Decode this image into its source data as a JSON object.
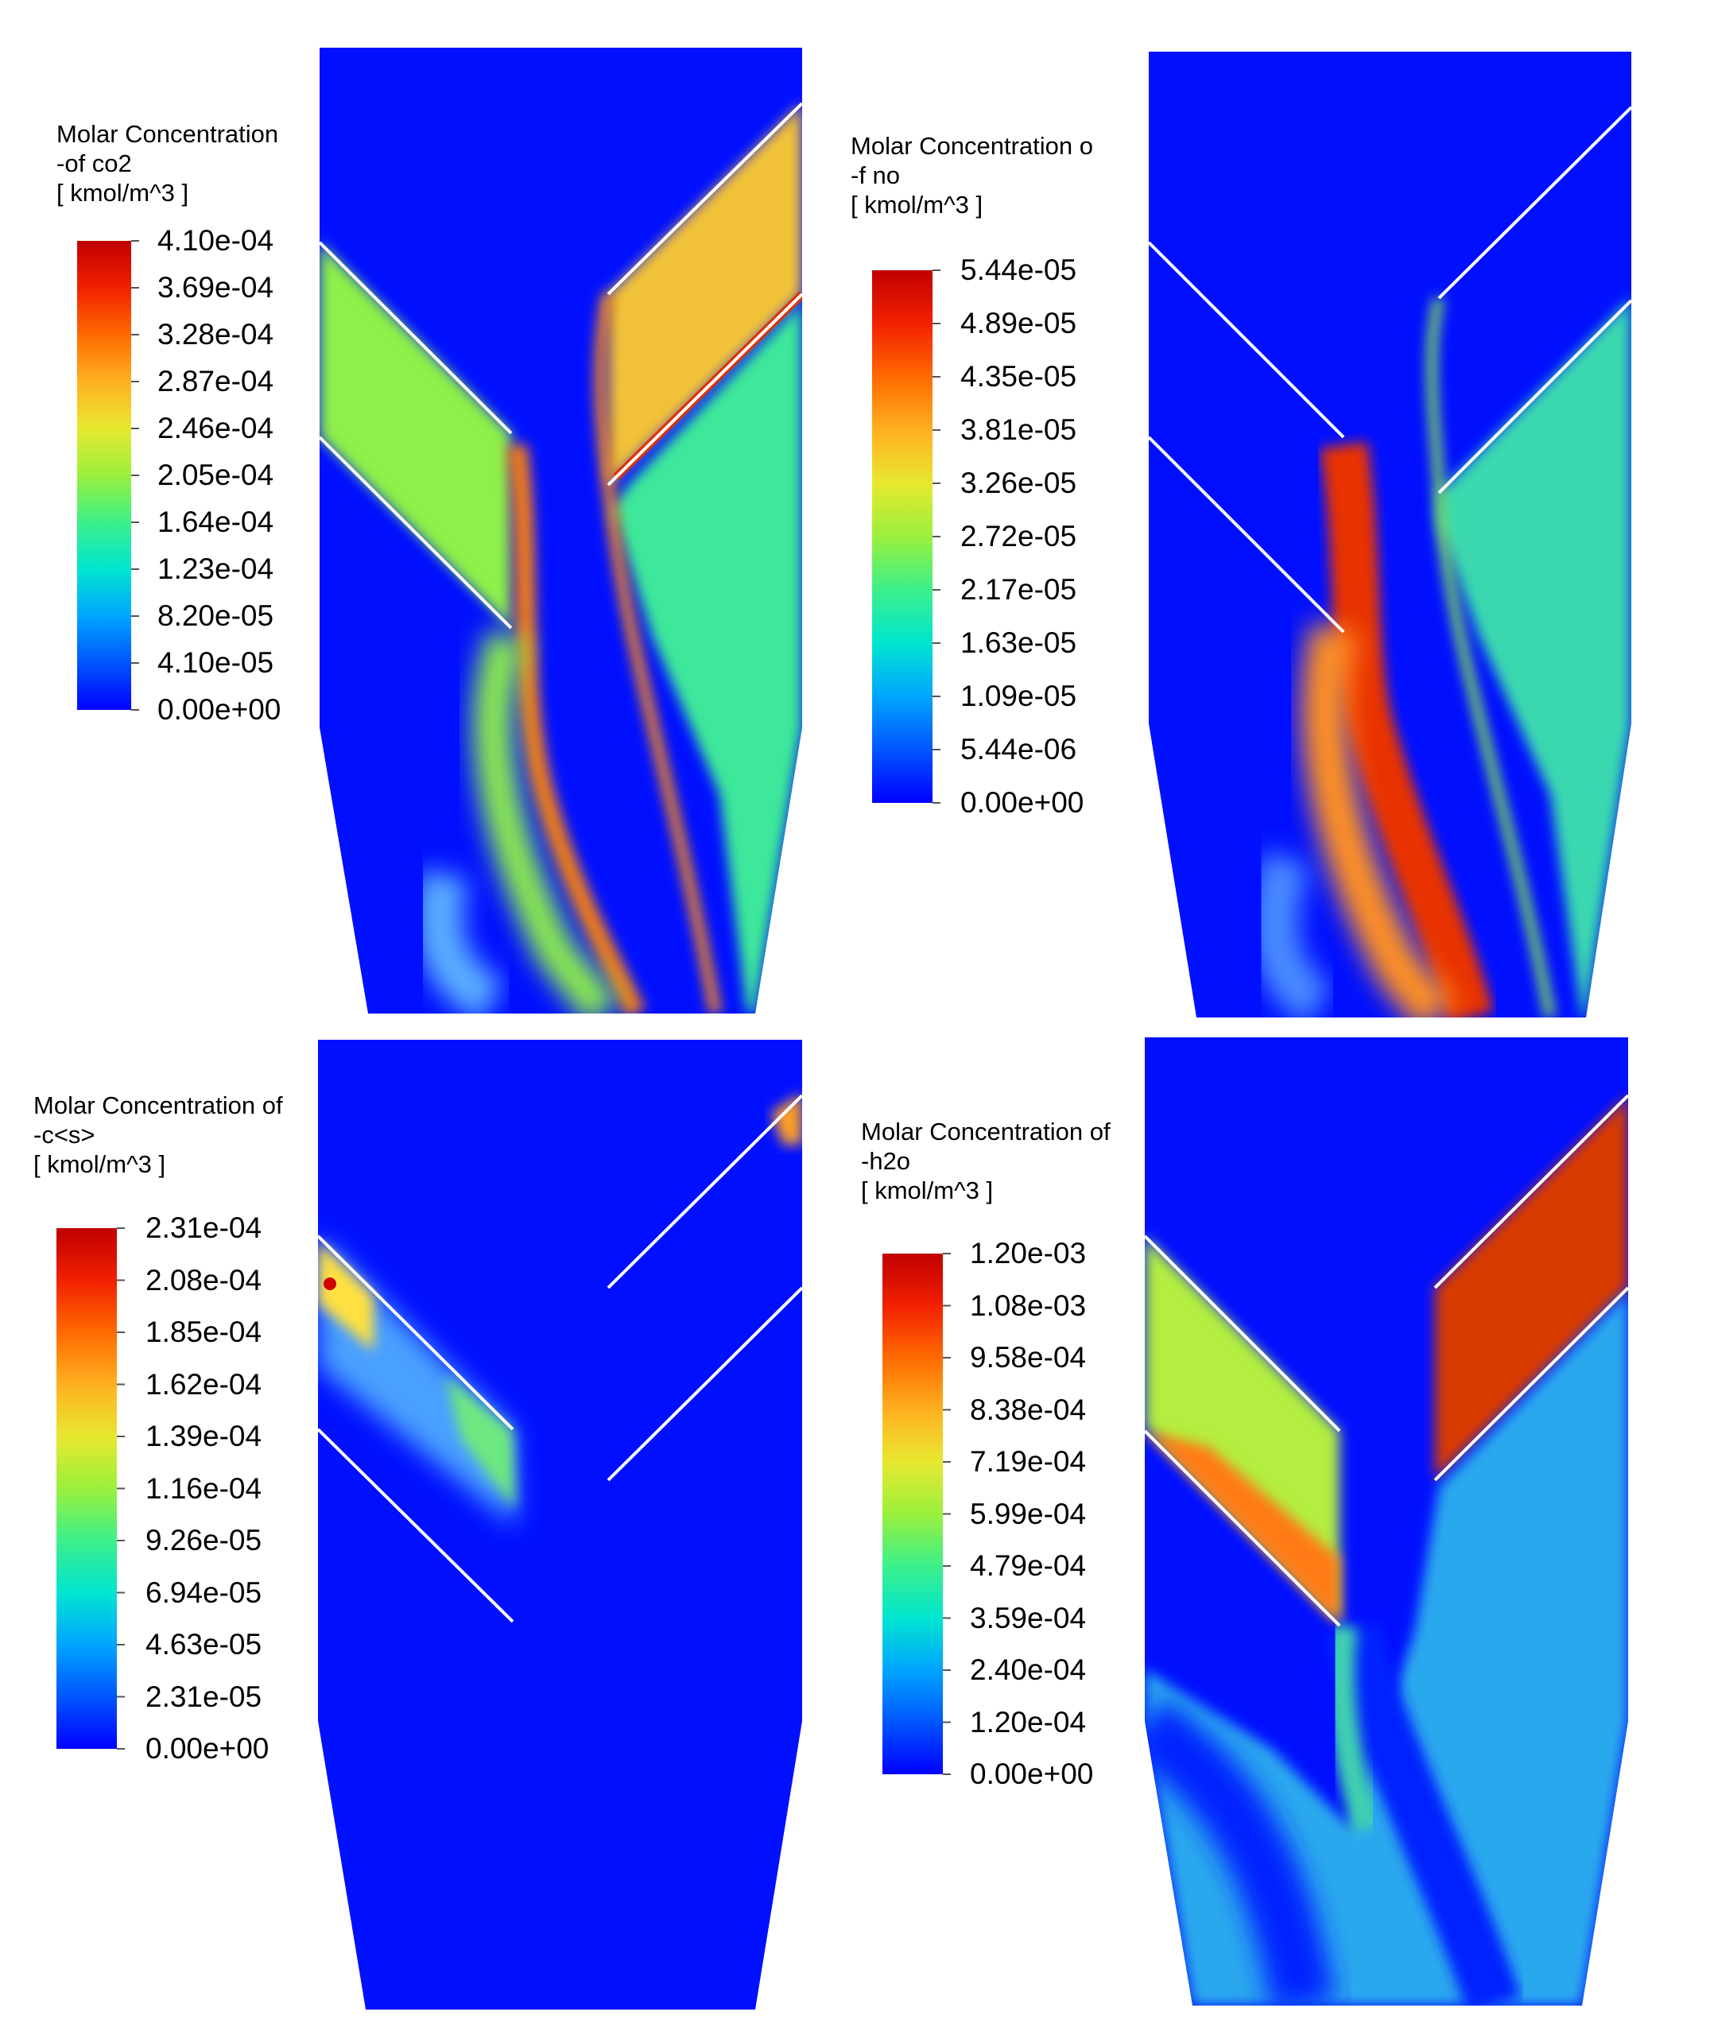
{
  "panels": [
    {
      "id": "co2",
      "title_lines": [
        "Molar Concentration",
        "-of co2",
        "[ kmol/m^3 ]"
      ],
      "ticks": [
        "4.10e-04",
        "3.69e-04",
        "3.28e-04",
        "2.87e-04",
        "2.46e-04",
        "2.05e-04",
        "1.64e-04",
        "1.23e-04",
        "8.20e-05",
        "4.10e-05",
        "0.00e+00"
      ]
    },
    {
      "id": "no",
      "title_lines": [
        "Molar Concentration o",
        "-f no",
        "[ kmol/m^3 ]"
      ],
      "ticks": [
        "5.44e-05",
        "4.89e-05",
        "4.35e-05",
        "3.81e-05",
        "3.26e-05",
        "2.72e-05",
        "2.17e-05",
        "1.63e-05",
        "1.09e-05",
        "5.44e-06",
        "0.00e+00"
      ]
    },
    {
      "id": "cs",
      "title_lines": [
        "Molar Concentration of",
        "-c<s>",
        "[ kmol/m^3 ]"
      ],
      "ticks": [
        "2.31e-04",
        "2.08e-04",
        "1.85e-04",
        "1.62e-04",
        "1.39e-04",
        "1.16e-04",
        "9.26e-05",
        "6.94e-05",
        "4.63e-05",
        "2.31e-05",
        "0.00e+00"
      ]
    },
    {
      "id": "h2o",
      "title_lines": [
        "Molar Concentration of",
        "-h2o",
        "[ kmol/m^3 ]"
      ],
      "ticks": [
        "1.20e-03",
        "1.08e-03",
        "9.58e-04",
        "8.38e-04",
        "7.19e-04",
        "5.99e-04",
        "4.79e-04",
        "3.59e-04",
        "2.40e-04",
        "1.20e-04",
        "0.00e+00"
      ]
    }
  ],
  "colors": {
    "background_field": "#0010ff",
    "colormap": [
      "#0000ff",
      "#0055ff",
      "#00a5ff",
      "#00e5d0",
      "#3cf08a",
      "#9af03c",
      "#e8e830",
      "#ffb020",
      "#ff6a00",
      "#f22000",
      "#c00000"
    ]
  }
}
